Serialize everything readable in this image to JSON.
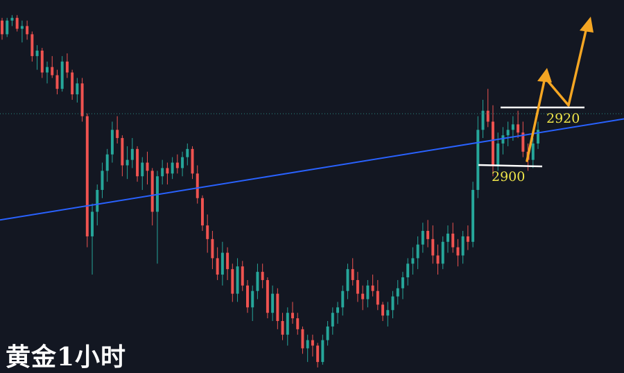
{
  "caption": "黄金1小时",
  "chart_data": {
    "type": "candlestick",
    "title": "黄金1小时",
    "ylim": [
      2828,
      2960
    ],
    "grid": false,
    "colors": {
      "up": "#26a69a",
      "down": "#ef5350",
      "background": "#131722",
      "trendline": "#2962ff",
      "arrow": "#f5a623",
      "level_line": "#ffffff",
      "label": "#f0e64a"
    },
    "candles": [
      [
        2955,
        2956,
        2948,
        2950
      ],
      [
        2950,
        2956,
        2949,
        2955
      ],
      [
        2955,
        2957,
        2953,
        2956
      ],
      [
        2956,
        2957,
        2951,
        2952
      ],
      [
        2952,
        2955,
        2947,
        2953
      ],
      [
        2953,
        2955,
        2948,
        2950
      ],
      [
        2950,
        2951,
        2940,
        2942
      ],
      [
        2942,
        2946,
        2937,
        2944
      ],
      [
        2944,
        2945,
        2934,
        2936
      ],
      [
        2936,
        2940,
        2932,
        2938
      ],
      [
        2938,
        2942,
        2934,
        2935
      ],
      [
        2935,
        2937,
        2928,
        2930
      ],
      [
        2930,
        2942,
        2929,
        2940
      ],
      [
        2940,
        2943,
        2934,
        2936
      ],
      [
        2936,
        2937,
        2926,
        2928
      ],
      [
        2928,
        2934,
        2925,
        2932
      ],
      [
        2932,
        2934,
        2918,
        2920
      ],
      [
        2920,
        2921,
        2872,
        2876
      ],
      [
        2876,
        2888,
        2862,
        2885
      ],
      [
        2885,
        2895,
        2880,
        2893
      ],
      [
        2893,
        2903,
        2890,
        2900
      ],
      [
        2900,
        2908,
        2896,
        2906
      ],
      [
        2906,
        2918,
        2903,
        2915
      ],
      [
        2915,
        2920,
        2910,
        2912
      ],
      [
        2912,
        2913,
        2898,
        2902
      ],
      [
        2902,
        2909,
        2897,
        2904
      ],
      [
        2904,
        2912,
        2901,
        2908
      ],
      [
        2908,
        2909,
        2896,
        2898
      ],
      [
        2898,
        2905,
        2893,
        2903
      ],
      [
        2903,
        2907,
        2895,
        2900
      ],
      [
        2900,
        2901,
        2880,
        2885
      ],
      [
        2885,
        2900,
        2866,
        2898
      ],
      [
        2898,
        2904,
        2895,
        2901
      ],
      [
        2901,
        2903,
        2895,
        2899
      ],
      [
        2899,
        2905,
        2897,
        2903
      ],
      [
        2903,
        2906,
        2899,
        2901
      ],
      [
        2901,
        2907,
        2898,
        2905
      ],
      [
        2905,
        2910,
        2902,
        2908
      ],
      [
        2908,
        2909,
        2897,
        2899
      ],
      [
        2899,
        2902,
        2888,
        2890
      ],
      [
        2890,
        2891,
        2878,
        2880
      ],
      [
        2880,
        2884,
        2870,
        2875
      ],
      [
        2875,
        2878,
        2864,
        2868
      ],
      [
        2868,
        2872,
        2860,
        2862
      ],
      [
        2862,
        2874,
        2858,
        2870
      ],
      [
        2870,
        2872,
        2860,
        2864
      ],
      [
        2864,
        2866,
        2852,
        2855
      ],
      [
        2855,
        2868,
        2852,
        2865
      ],
      [
        2865,
        2867,
        2856,
        2858
      ],
      [
        2858,
        2860,
        2848,
        2850
      ],
      [
        2850,
        2858,
        2845,
        2856
      ],
      [
        2856,
        2866,
        2853,
        2863
      ],
      [
        2863,
        2866,
        2857,
        2860
      ],
      [
        2860,
        2861,
        2846,
        2848
      ],
      [
        2848,
        2858,
        2845,
        2855
      ],
      [
        2855,
        2857,
        2842,
        2845
      ],
      [
        2845,
        2848,
        2838,
        2840
      ],
      [
        2840,
        2850,
        2836,
        2848
      ],
      [
        2848,
        2852,
        2844,
        2846
      ],
      [
        2846,
        2848,
        2840,
        2842
      ],
      [
        2842,
        2843,
        2833,
        2835
      ],
      [
        2835,
        2840,
        2830,
        2838
      ],
      [
        2838,
        2840,
        2832,
        2836
      ],
      [
        2836,
        2837,
        2828,
        2830
      ],
      [
        2830,
        2840,
        2829,
        2838
      ],
      [
        2838,
        2845,
        2836,
        2843
      ],
      [
        2843,
        2850,
        2840,
        2848
      ],
      [
        2848,
        2852,
        2844,
        2850
      ],
      [
        2850,
        2858,
        2847,
        2856
      ],
      [
        2856,
        2866,
        2853,
        2864
      ],
      [
        2864,
        2868,
        2858,
        2860
      ],
      [
        2860,
        2863,
        2852,
        2855
      ],
      [
        2855,
        2858,
        2849,
        2853
      ],
      [
        2853,
        2860,
        2850,
        2858
      ],
      [
        2858,
        2862,
        2854,
        2856
      ],
      [
        2856,
        2860,
        2849,
        2851
      ],
      [
        2851,
        2852,
        2845,
        2847
      ],
      [
        2847,
        2852,
        2843,
        2849
      ],
      [
        2849,
        2856,
        2846,
        2854
      ],
      [
        2854,
        2860,
        2851,
        2857
      ],
      [
        2857,
        2863,
        2853,
        2861
      ],
      [
        2861,
        2868,
        2858,
        2866
      ],
      [
        2866,
        2872,
        2862,
        2868
      ],
      [
        2868,
        2876,
        2864,
        2873
      ],
      [
        2873,
        2881,
        2870,
        2878
      ],
      [
        2878,
        2882,
        2872,
        2875
      ],
      [
        2875,
        2880,
        2866,
        2869
      ],
      [
        2869,
        2873,
        2862,
        2866
      ],
      [
        2866,
        2876,
        2864,
        2874
      ],
      [
        2874,
        2880,
        2870,
        2877
      ],
      [
        2877,
        2881,
        2870,
        2872
      ],
      [
        2872,
        2875,
        2865,
        2869
      ],
      [
        2869,
        2878,
        2866,
        2876
      ],
      [
        2876,
        2880,
        2871,
        2874
      ],
      [
        2874,
        2896,
        2872,
        2893
      ],
      [
        2893,
        2920,
        2890,
        2915
      ],
      [
        2915,
        2926,
        2912,
        2922
      ],
      [
        2922,
        2930,
        2916,
        2918
      ],
      [
        2918,
        2924,
        2898,
        2902
      ],
      [
        2902,
        2914,
        2900,
        2910
      ],
      [
        2910,
        2916,
        2906,
        2913
      ],
      [
        2913,
        2918,
        2909,
        2915
      ],
      [
        2915,
        2920,
        2911,
        2917
      ],
      [
        2917,
        2922,
        2912,
        2914
      ],
      [
        2914,
        2918,
        2905,
        2907
      ],
      [
        2907,
        2910,
        2900,
        2904
      ],
      [
        2904,
        2912,
        2901,
        2910
      ],
      [
        2910,
        2918,
        2908,
        2915
      ]
    ],
    "trendline": [
      [
        0,
        2882
      ],
      [
        1,
        2919
      ]
    ],
    "levels": [
      {
        "label": "2920",
        "value": 2920
      },
      {
        "label": "2900",
        "value": 2900
      }
    ]
  }
}
